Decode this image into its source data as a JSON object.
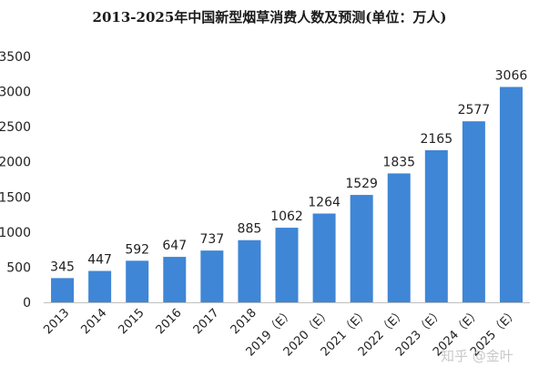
{
  "chart_data": {
    "type": "bar",
    "title": "2013-2025年中国新型烟草消费人数及预测(单位：万人)",
    "categories": [
      "2013",
      "2014",
      "2015",
      "2016",
      "2017",
      "2018",
      "2019（E）",
      "2020（E）",
      "2021（E）",
      "2022（E）",
      "2023（E）",
      "2024（E）",
      "2025（E）"
    ],
    "values": [
      345,
      447,
      592,
      647,
      737,
      885,
      1062,
      1264,
      1529,
      1835,
      2165,
      2577,
      3066
    ],
    "y_ticks": [
      "0",
      "500",
      "1000",
      "1500",
      "2000",
      "2500",
      "3000",
      "3500"
    ],
    "ylim": [
      0,
      3500
    ],
    "grid": false,
    "bar_color": "#3f86d6"
  },
  "watermark": "知乎 @金叶"
}
